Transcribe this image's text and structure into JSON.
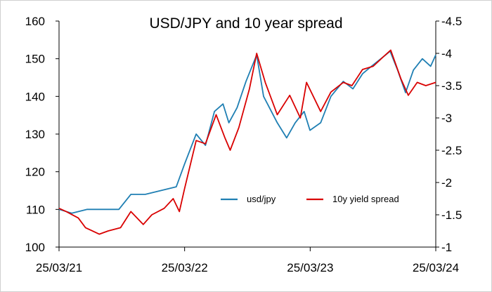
{
  "chart_data": {
    "type": "line",
    "title": "USD/JPY and 10 year spread",
    "xlabel": "",
    "ylabel": "",
    "grid": false,
    "legend_position": "bottom-right inside",
    "x_ticks": [
      "25/03/21",
      "25/03/22",
      "25/03/23",
      "25/03/24"
    ],
    "y_left": {
      "min": 100,
      "max": 160,
      "ticks": [
        "100",
        "110",
        "120",
        "130",
        "140",
        "150",
        "160"
      ]
    },
    "y_right": {
      "min": -1.0,
      "max": -4.5,
      "reversed": true,
      "ticks": [
        "-1",
        "-1.5",
        "-2",
        "-2.5",
        "-3",
        "-3.5",
        "-4",
        "-4.5"
      ]
    },
    "series": [
      {
        "name": "usd/jpy",
        "axis": "left",
        "color": "#1f7fb3",
        "dates": [
          "2021-03-25",
          "2021-05-01",
          "2021-06-15",
          "2021-08-01",
          "2021-09-15",
          "2021-10-20",
          "2021-12-01",
          "2022-01-15",
          "2022-03-01",
          "2022-03-25",
          "2022-04-28",
          "2022-05-25",
          "2022-06-20",
          "2022-07-15",
          "2022-08-01",
          "2022-08-25",
          "2022-09-20",
          "2022-10-21",
          "2022-11-10",
          "2022-12-20",
          "2023-01-16",
          "2023-02-10",
          "2023-03-08",
          "2023-03-25",
          "2023-04-25",
          "2023-05-25",
          "2023-06-30",
          "2023-07-28",
          "2023-08-25",
          "2023-09-20",
          "2023-10-31",
          "2023-11-13",
          "2023-12-05",
          "2023-12-28",
          "2024-01-20",
          "2024-02-15",
          "2024-03-10",
          "2024-03-25"
        ],
        "values": [
          110,
          109,
          110,
          110,
          110,
          114,
          114,
          115,
          116,
          122,
          130,
          127,
          136,
          138,
          133,
          137,
          144,
          151,
          140,
          133,
          129,
          133,
          136,
          131,
          133,
          140,
          144,
          142,
          146,
          148,
          151,
          152,
          147,
          141,
          147,
          150,
          148,
          151
        ]
      },
      {
        "name": "10y yield spread",
        "axis": "right",
        "color": "#d90000",
        "dates": [
          "2021-03-25",
          "2021-04-15",
          "2021-05-20",
          "2021-06-10",
          "2021-07-20",
          "2021-08-15",
          "2021-09-20",
          "2021-10-20",
          "2021-11-25",
          "2021-12-20",
          "2022-01-25",
          "2022-02-20",
          "2022-03-10",
          "2022-03-25",
          "2022-04-28",
          "2022-05-25",
          "2022-06-25",
          "2022-07-20",
          "2022-08-05",
          "2022-08-30",
          "2022-09-30",
          "2022-10-21",
          "2022-11-15",
          "2022-12-20",
          "2023-01-25",
          "2023-02-25",
          "2023-03-15",
          "2023-04-25",
          "2023-05-25",
          "2023-06-30",
          "2023-07-25",
          "2023-08-25",
          "2023-09-25",
          "2023-10-25",
          "2023-11-15",
          "2023-12-15",
          "2024-01-05",
          "2024-01-31",
          "2024-02-25",
          "2024-03-25"
        ],
        "values": [
          -1.6,
          -1.55,
          -1.45,
          -1.3,
          -1.2,
          -1.25,
          -1.3,
          -1.55,
          -1.35,
          -1.5,
          -1.6,
          -1.75,
          -1.55,
          -1.9,
          -2.65,
          -2.6,
          -3.05,
          -2.7,
          -2.5,
          -2.85,
          -3.45,
          -4.0,
          -3.55,
          -3.05,
          -3.35,
          -3.0,
          -3.55,
          -3.1,
          -3.4,
          -3.55,
          -3.5,
          -3.75,
          -3.8,
          -3.95,
          -4.05,
          -3.6,
          -3.35,
          -3.55,
          -3.5,
          -3.55
        ]
      }
    ]
  }
}
